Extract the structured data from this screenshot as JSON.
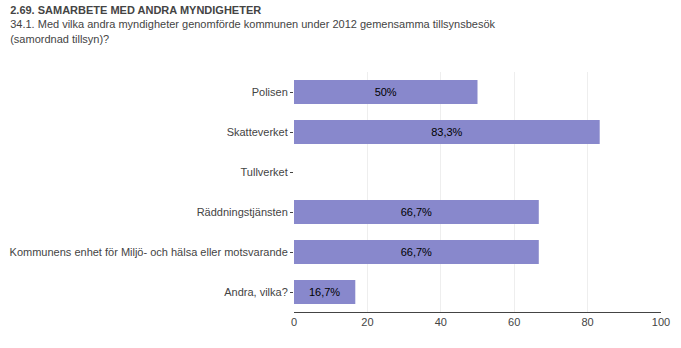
{
  "chart_data": {
    "type": "bar",
    "orientation": "horizontal",
    "title": "2.69. SAMARBETE MED ANDRA MYNDIGHETER",
    "subtitle": "34.1. Med vilka andra myndigheter genomförde kommunen under 2012 gemensamma tillsynsbesök\n(samordnad tillsyn)?",
    "categories": [
      "Polisen",
      "Skatteverket",
      "Tullverket",
      "Räddningstjänsten",
      "Kommunens enhet för Miljö- och hälsa eller motsvarande",
      "Andra, vilka?"
    ],
    "values": [
      50.0,
      83.3,
      0.0,
      66.7,
      66.7,
      16.7
    ],
    "value_labels": [
      "50%",
      "83,3%",
      null,
      "66,7%",
      "66,7%",
      "16,7%"
    ],
    "data_labels": true,
    "color": "#8888cc",
    "xlim": [
      0,
      100
    ],
    "xticks": [
      0,
      20,
      40,
      60,
      80,
      100
    ],
    "grid": true
  }
}
